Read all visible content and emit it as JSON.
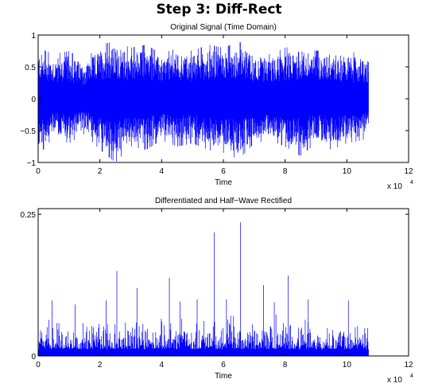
{
  "page_title": "Step 3: Diff-Rect",
  "chart_data": [
    {
      "type": "line",
      "title": "Original Signal (Time Domain)",
      "xlabel": "Time",
      "ylabel": "",
      "x_exponent_label": "x 10",
      "x_exponent": "4",
      "xlim": [
        0,
        120000
      ],
      "ylim": [
        -1,
        1
      ],
      "x_ticks": [
        0,
        2,
        4,
        6,
        8,
        10,
        12
      ],
      "y_ticks": [
        -1,
        -0.5,
        0,
        0.5,
        1
      ],
      "y_tick_labels": [
        "−1",
        "−0.5",
        "0",
        "0.5",
        "1"
      ],
      "grid": false,
      "color": "#0000ff",
      "data_x_range": [
        0,
        107000
      ],
      "envelope": {
        "note": "dense audio waveform; approximate per-segment peak amplitudes",
        "x": [
          0,
          5000,
          10000,
          15000,
          20000,
          25000,
          30000,
          35000,
          40000,
          45000,
          50000,
          55000,
          60000,
          65000,
          70000,
          75000,
          80000,
          85000,
          90000,
          95000,
          100000,
          105000,
          107000
        ],
        "upper": [
          0.8,
          0.7,
          0.75,
          0.6,
          0.85,
          0.9,
          0.8,
          0.85,
          0.7,
          0.8,
          0.75,
          0.85,
          0.8,
          0.9,
          0.75,
          0.7,
          0.8,
          0.85,
          0.75,
          0.8,
          0.75,
          0.7,
          0.65
        ],
        "lower": [
          -0.9,
          -0.6,
          -0.7,
          -0.55,
          -0.8,
          -1.0,
          -0.75,
          -0.8,
          -0.65,
          -0.75,
          -0.7,
          -0.8,
          -0.85,
          -0.95,
          -0.7,
          -0.65,
          -0.75,
          -0.9,
          -0.7,
          -0.8,
          -0.7,
          -0.65,
          -0.6
        ]
      }
    },
    {
      "type": "line",
      "title": "Differentiated and Half−Wave Rectified",
      "xlabel": "Time",
      "ylabel": "",
      "x_exponent_label": "x 10",
      "x_exponent": "4",
      "xlim": [
        0,
        120000
      ],
      "ylim": [
        0,
        0.26
      ],
      "x_ticks": [
        0,
        2,
        4,
        6,
        8,
        10,
        12
      ],
      "y_ticks": [
        0,
        0.25
      ],
      "y_tick_labels": [
        "0",
        "0.25"
      ],
      "grid": false,
      "color": "#0000ff",
      "data_x_range": [
        0,
        107000
      ],
      "peaks": {
        "note": "approximate tallest spikes",
        "x": [
          4500,
          12000,
          22000,
          25500,
          32000,
          42500,
          46000,
          51500,
          57000,
          61000,
          65500,
          73000,
          76500,
          81000,
          87500,
          100500
        ],
        "y": [
          0.098,
          0.091,
          0.098,
          0.15,
          0.12,
          0.138,
          0.096,
          0.1,
          0.218,
          0.1,
          0.236,
          0.125,
          0.095,
          0.142,
          0.1,
          0.098
        ]
      }
    }
  ]
}
